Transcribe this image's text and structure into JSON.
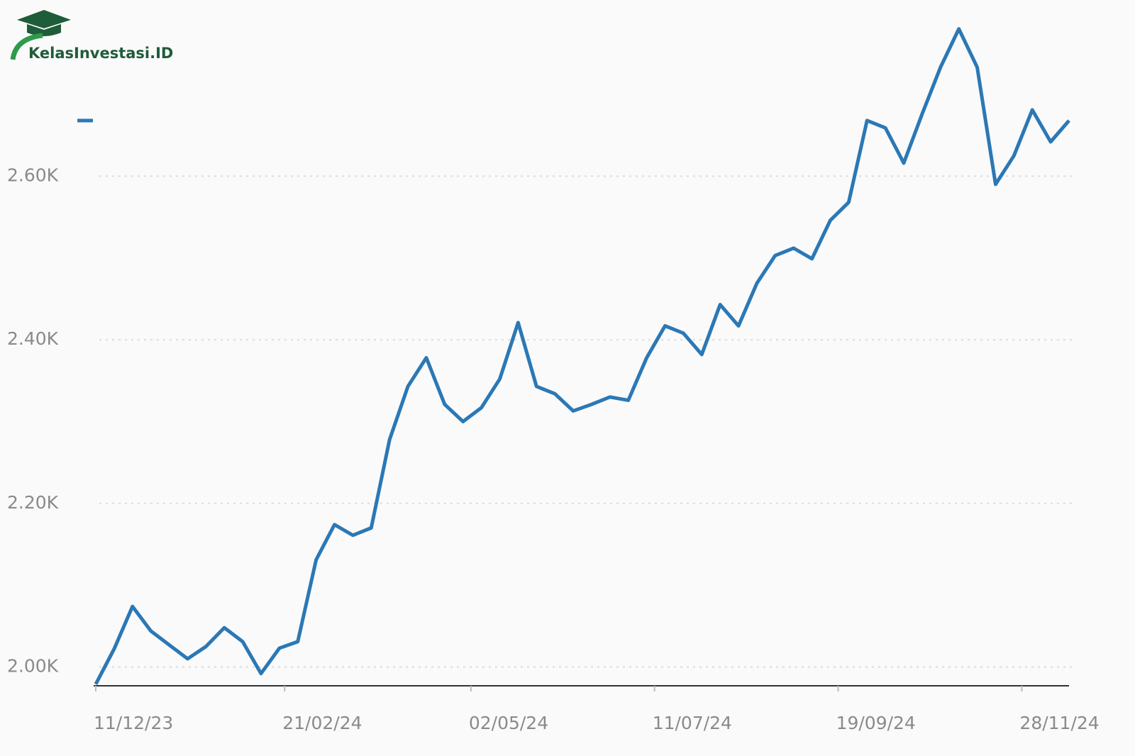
{
  "brand": "KelasInvestasi.ID",
  "chart_data": {
    "type": "line",
    "x": [
      "11/12/23",
      "18/12/23",
      "25/12/23",
      "01/01/24",
      "08/01/24",
      "15/01/24",
      "22/01/24",
      "29/01/24",
      "05/02/24",
      "12/02/24",
      "19/02/24",
      "26/02/24",
      "04/03/24",
      "11/03/24",
      "18/03/24",
      "25/03/24",
      "01/04/24",
      "08/04/24",
      "15/04/24",
      "22/04/24",
      "29/04/24",
      "06/05/24",
      "13/05/24",
      "20/05/24",
      "27/05/24",
      "03/06/24",
      "10/06/24",
      "17/06/24",
      "24/06/24",
      "01/07/24",
      "08/07/24",
      "15/07/24",
      "22/07/24",
      "29/07/24",
      "05/08/24",
      "12/08/24",
      "19/08/24",
      "26/08/24",
      "02/09/24",
      "09/09/24",
      "16/09/24",
      "23/09/24",
      "30/09/24",
      "07/10/24",
      "14/10/24",
      "21/10/24",
      "28/10/24",
      "04/11/24",
      "11/11/24",
      "18/11/24",
      "25/11/24",
      "02/12/24",
      "09/12/24",
      "16/12/24"
    ],
    "series": [
      {
        "color": "#2b78b5",
        "values": [
          1979,
          2022,
          2074,
          2044,
          2027,
          2010,
          2025,
          2048,
          2031,
          1992,
          2023,
          2031,
          2131,
          2174,
          2161,
          2170,
          2278,
          2343,
          2378,
          2321,
          2300,
          2317,
          2352,
          2421,
          2343,
          2334,
          2313,
          2321,
          2330,
          2326,
          2378,
          2417,
          2408,
          2382,
          2443,
          2417,
          2469,
          2503,
          2512,
          2499,
          2546,
          2568,
          2668,
          2659,
          2616,
          2676,
          2733,
          2780,
          2733,
          2590,
          2625,
          2681,
          2642,
          2668
        ]
      }
    ],
    "xlim": [
      "11/12/23",
      "16/12/24"
    ],
    "xticks": [
      "11/12/23",
      "21/02/24",
      "02/05/24",
      "11/07/24",
      "19/09/24",
      "28/11/24"
    ],
    "ylim": [
      1977,
      2798
    ],
    "yticks": [
      {
        "value": 2000,
        "label": "2.00K"
      },
      {
        "value": 2200,
        "label": "2.20K"
      },
      {
        "value": 2400,
        "label": "2.40K"
      },
      {
        "value": 2600,
        "label": "2.60K"
      }
    ],
    "grid": true
  }
}
